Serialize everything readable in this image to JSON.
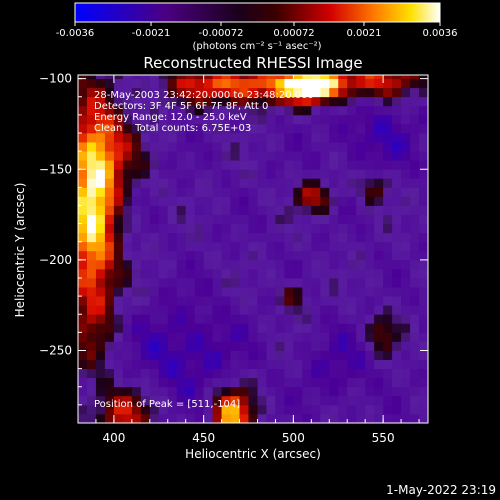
{
  "chart_data": {
    "type": "heatmap",
    "title": "Reconstructed RHESSI Image",
    "xlabel": "Heliocentric X (arcsec)",
    "ylabel": "Heliocentric Y (arcsec)",
    "xlim": [
      380,
      575
    ],
    "ylim": [
      -290,
      -98
    ],
    "x_ticks": [
      400,
      450,
      500,
      550
    ],
    "y_ticks": [
      -100,
      -150,
      -200,
      -250
    ],
    "colorbar": {
      "min": -0.0036,
      "max": 0.0036,
      "tick_values": [
        -0.0036,
        -0.0021,
        -0.00072,
        0.00072,
        0.0021,
        0.0036
      ],
      "tick_labels": [
        "-0.0036",
        "-0.0021",
        "-0.00072",
        "0.00072",
        "0.0021",
        "0.0036"
      ],
      "unit_label": "(photons cm⁻² s⁻¹ asec⁻²)"
    },
    "annotations": [
      "28-May-2003 23:42:20.000 to 23:48:20.000",
      "Detectors: 3F 4F 5F 6F 7F 8F, Att 0",
      "Energy Range: 12.0 - 25.0 keV",
      "Clean    Total counts: 6.75E+03"
    ],
    "peak_label": "Position of Peak = [511,-104]",
    "peak": [
      511,
      -104
    ],
    "grid": false
  },
  "footer": {
    "timestamp": "1-May-2022 23:19"
  }
}
